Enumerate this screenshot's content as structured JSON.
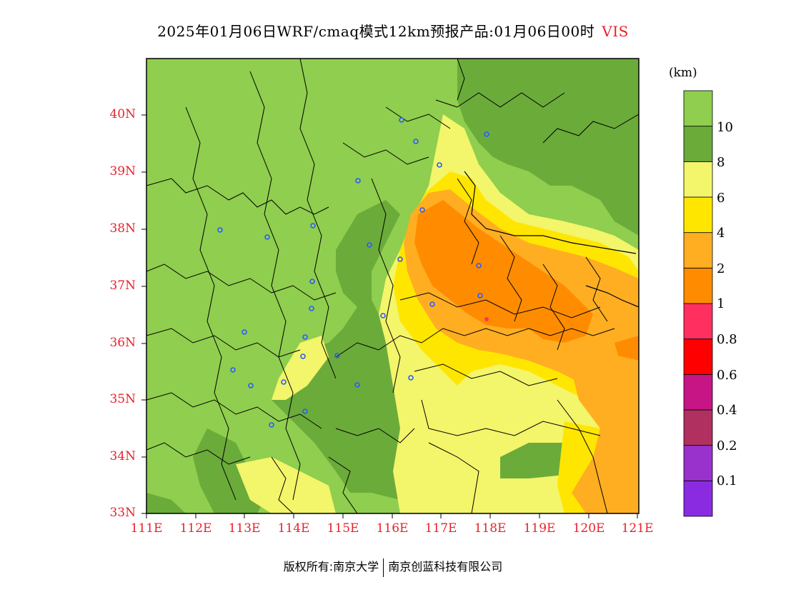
{
  "title": {
    "main": "2025年01月06日WRF/cmaq模式12km预报产品:01月06日00时",
    "variable": "VIS"
  },
  "lat_labels": [
    "40N",
    "39N",
    "38N",
    "37N",
    "36N",
    "35N",
    "34N",
    "33N"
  ],
  "lon_labels": [
    "111E",
    "112E",
    "113E",
    "114E",
    "115E",
    "116E",
    "117E",
    "118E",
    "119E",
    "120E",
    "121E"
  ],
  "colorbar": {
    "unit": "(km)",
    "colors": [
      "#8a2be2",
      "#9932cc",
      "#b03060",
      "#c71585",
      "#ff0000",
      "#ff3060",
      "#ff8c00",
      "#ffae22",
      "#ffe600",
      "#f3f56a",
      "#6bab3a",
      "#8fce4e"
    ],
    "labels": [
      "0.1",
      "0.2",
      "0.4",
      "0.6",
      "0.8",
      "1",
      "2",
      "4",
      "6",
      "8",
      "10"
    ]
  },
  "copyright": {
    "left": "版权所有:南京大学",
    "right": "南京创蓝科技有限公司"
  },
  "map": {
    "colors": {
      "vis_gt10": "#8fce4e",
      "vis_8_10": "#6bab3a",
      "vis_6_8": "#f3f56a",
      "vis_4_6": "#ffe600",
      "vis_2_4": "#ffae22",
      "vis_1_2": "#ff8c00",
      "vis_08_1": "#ff3060",
      "station": "#2a5bff"
    }
  }
}
